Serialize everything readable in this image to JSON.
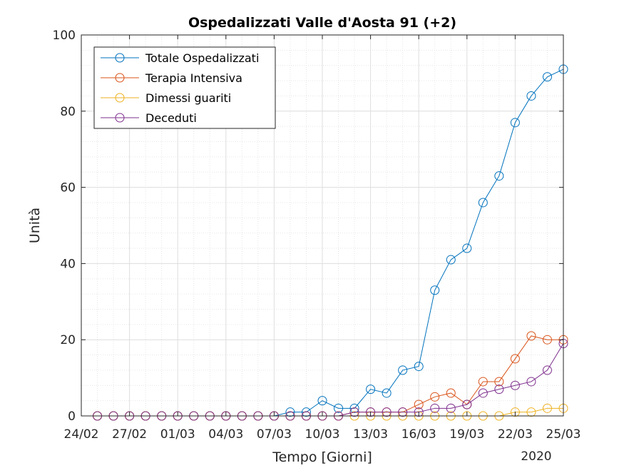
{
  "chart_data": {
    "type": "line",
    "title": "Ospedalizzati Valle d'Aosta 91 (+2)",
    "xlabel": "Tempo [Giorni]",
    "ylabel": "Unità",
    "year_label": "2020",
    "x_tick_labels": [
      "24/02",
      "27/02",
      "01/03",
      "04/03",
      "07/03",
      "10/03",
      "13/03",
      "16/03",
      "19/03",
      "22/03",
      "25/03"
    ],
    "y_tick_labels": [
      "0",
      "20",
      "40",
      "60",
      "80",
      "100"
    ],
    "ylim": [
      0,
      100
    ],
    "xlim": [
      "2020-02-24",
      "2020-03-25"
    ],
    "grid": true,
    "minor_grid": true,
    "legend_position": "top-left",
    "x": [
      "2020-02-25",
      "2020-02-26",
      "2020-02-27",
      "2020-02-28",
      "2020-02-29",
      "2020-03-01",
      "2020-03-02",
      "2020-03-03",
      "2020-03-04",
      "2020-03-05",
      "2020-03-06",
      "2020-03-07",
      "2020-03-08",
      "2020-03-09",
      "2020-03-10",
      "2020-03-11",
      "2020-03-12",
      "2020-03-13",
      "2020-03-14",
      "2020-03-15",
      "2020-03-16",
      "2020-03-17",
      "2020-03-18",
      "2020-03-19",
      "2020-03-20",
      "2020-03-21",
      "2020-03-22",
      "2020-03-23",
      "2020-03-24",
      "2020-03-25"
    ],
    "series": [
      {
        "name": "Totale Ospedalizzati",
        "color": "#0072bd",
        "values": [
          0,
          0,
          0,
          0,
          0,
          0,
          0,
          0,
          0,
          0,
          0,
          0,
          1,
          1,
          4,
          2,
          2,
          7,
          6,
          12,
          13,
          33,
          41,
          44,
          56,
          63,
          77,
          84,
          89,
          91
        ]
      },
      {
        "name": "Terapia Intensiva",
        "color": "#d95319",
        "values": [
          0,
          0,
          0,
          0,
          0,
          0,
          0,
          0,
          0,
          0,
          0,
          0,
          0,
          0,
          0,
          0,
          1,
          1,
          1,
          1,
          3,
          5,
          6,
          3,
          9,
          9,
          15,
          21,
          20,
          20
        ]
      },
      {
        "name": "Dimessi guariti",
        "color": "#edb120",
        "values": [
          0,
          0,
          0,
          0,
          0,
          0,
          0,
          0,
          0,
          0,
          0,
          0,
          0,
          0,
          0,
          0,
          0,
          0,
          0,
          0,
          0,
          0,
          0,
          0,
          0,
          0,
          1,
          1,
          2,
          2
        ]
      },
      {
        "name": "Deceduti",
        "color": "#7e2f8e",
        "values": [
          0,
          0,
          0,
          0,
          0,
          0,
          0,
          0,
          0,
          0,
          0,
          0,
          0,
          0,
          0,
          0,
          1,
          1,
          1,
          1,
          1,
          2,
          2,
          3,
          6,
          7,
          8,
          9,
          12,
          19
        ]
      }
    ]
  }
}
